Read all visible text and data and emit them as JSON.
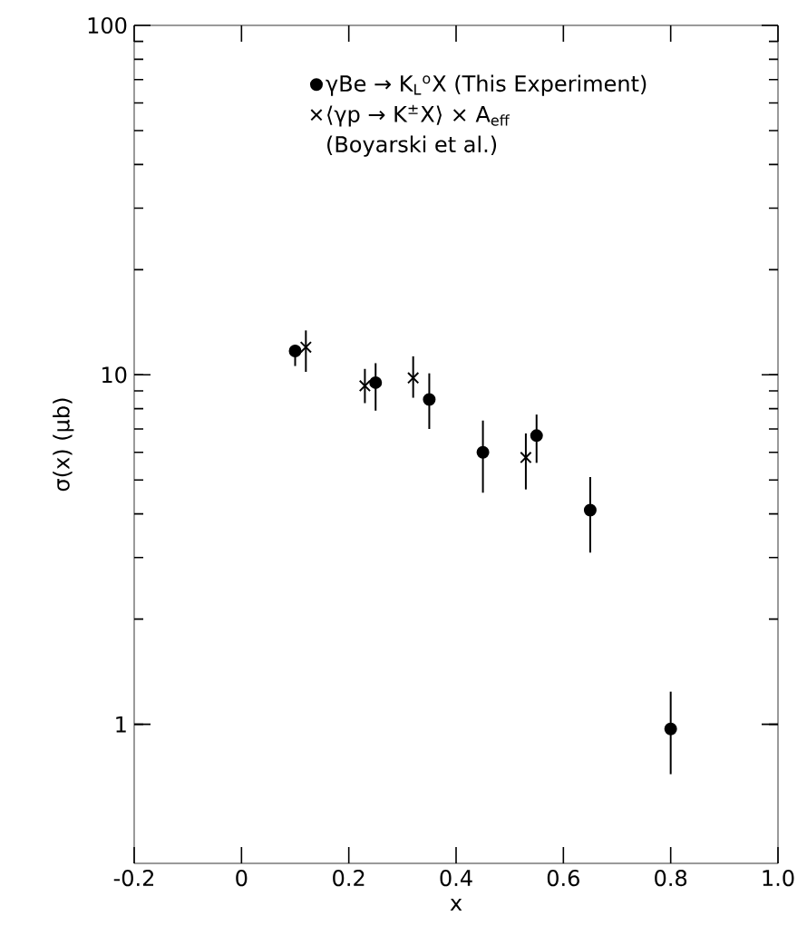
{
  "chart_data": {
    "type": "scatter",
    "xlabel": "x",
    "ylabel": "σ(x) (μb)",
    "log": "y",
    "xlim": [
      -0.2,
      1.0
    ],
    "xticks": [
      -0.2,
      0,
      0.2,
      0.4,
      0.6,
      0.8,
      {
        "value": 1.0,
        "label": "1.0"
      }
    ],
    "ylim": [
      0.4,
      100
    ],
    "yticks": [
      1,
      10,
      100
    ],
    "legend": "top left",
    "grid": false,
    "series": [
      {
        "name": "γBe → K$_{L}$$^{o}$X (This Experiment)",
        "color": "#000000",
        "marker": "circle",
        "x": [
          0.1,
          0.25,
          0.35,
          0.45,
          0.55,
          0.65,
          0.8
        ],
        "values": [
          11.7,
          9.5,
          8.5,
          6.0,
          6.7,
          4.1,
          0.97
        ],
        "errors": [
          [
            10.6,
            12.2
          ],
          [
            7.9,
            10.8
          ],
          [
            7.0,
            10.1
          ],
          [
            4.6,
            7.4
          ],
          [
            5.6,
            7.7
          ],
          [
            3.1,
            5.1
          ],
          [
            0.72,
            1.24
          ]
        ]
      },
      {
        "name": "⟨γp → K$^{±}$X⟩ × A$_{eff}$",
        "color": "#000000",
        "marker": "cross",
        "x": [
          0.12,
          0.23,
          0.32,
          0.53
        ],
        "values": [
          12.0,
          9.3,
          9.8,
          5.8
        ],
        "errors": [
          [
            10.2,
            13.4
          ],
          [
            8.3,
            10.4
          ],
          [
            8.6,
            11.3
          ],
          [
            4.7,
            6.8
          ]
        ]
      }
    ],
    "annotations": [
      "(Boyarski et al.)"
    ]
  }
}
